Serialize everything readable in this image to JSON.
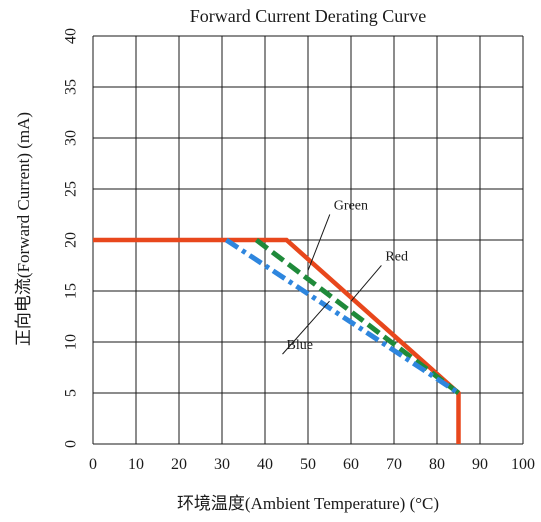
{
  "chart_data": {
    "type": "line",
    "title": "Forward Current Derating Curve",
    "xlabel": "环境温度(Ambient Temperature) (°C)",
    "ylabel": "正向电流(Forward Current) (mA)",
    "xlim": [
      0,
      100
    ],
    "ylim": [
      0,
      40
    ],
    "x_ticks": [
      "0",
      "10",
      "20",
      "30",
      "40",
      "50",
      "60",
      "70",
      "80",
      "90",
      "100"
    ],
    "y_ticks": [
      "0",
      "5",
      "10",
      "15",
      "20",
      "25",
      "30",
      "35",
      "40"
    ],
    "grid": true,
    "legend": "none",
    "colors": {
      "red": "#e8471c",
      "green": "#1f8a3a",
      "blue": "#2e86de",
      "grid": "#1a1a1a"
    },
    "series": [
      {
        "key": "red",
        "points": [
          [
            0,
            20
          ],
          [
            45,
            20
          ],
          [
            85,
            5
          ],
          [
            85,
            0
          ]
        ],
        "style": "solid"
      },
      {
        "key": "green",
        "points": [
          [
            38,
            20
          ],
          [
            85,
            5
          ]
        ],
        "style": "dashed"
      },
      {
        "key": "blue",
        "points": [
          [
            31,
            20
          ],
          [
            85,
            5
          ]
        ],
        "style": "dashdot"
      }
    ],
    "annotations": [
      {
        "text": "Green",
        "series": "green",
        "label_at": [
          56,
          23
        ],
        "points_to": [
          50,
          17
        ]
      },
      {
        "text": "Red",
        "series": "red",
        "label_at": [
          68,
          18
        ],
        "points_to": [
          60,
          14
        ]
      },
      {
        "text": "Blue",
        "series": "blue",
        "label_at": [
          45,
          9.3
        ],
        "points_to": [
          55,
          14
        ]
      }
    ]
  }
}
